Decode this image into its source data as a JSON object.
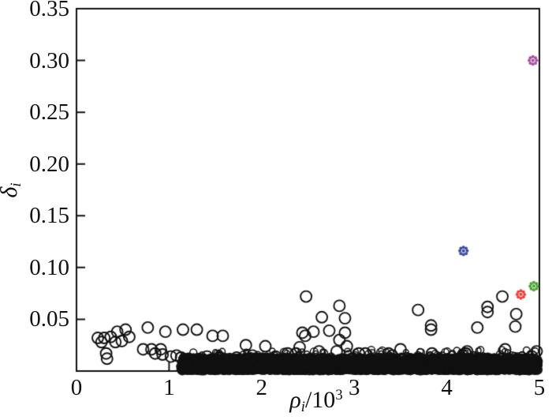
{
  "figure": {
    "background": "#ffffff",
    "axis_color": "#111111",
    "marker_color": "#111111"
  },
  "axis_labels": {
    "y": {
      "symbol": "δ",
      "subscript": "i"
    },
    "x": {
      "symbol": "ρ",
      "subscript": "i",
      "divider": "/10",
      "exponent": "3"
    }
  },
  "chart_data": {
    "type": "scatter",
    "title": "",
    "xlabel": "rho_i / 10^3",
    "ylabel": "delta_i",
    "xlim": [
      0,
      5
    ],
    "ylim": [
      0,
      0.35
    ],
    "grid": false,
    "legend": null,
    "marker": "open-circle",
    "x_tick_values": [
      0,
      1,
      2,
      3,
      4,
      5
    ],
    "x_tick_labels": [
      "0",
      "1",
      "2",
      "3",
      "4",
      "5"
    ],
    "y_tick_values": [
      0.05,
      0.1,
      0.15,
      0.2,
      0.25,
      0.3,
      0.35
    ],
    "y_tick_labels": [
      "0.05",
      "0.10",
      "0.15",
      "0.20",
      "0.25",
      "0.30",
      "0.35"
    ],
    "cluster_center_points": [
      {
        "name": "center-magenta",
        "rho": 4.93,
        "delta": 0.3,
        "color": "#AA50A0"
      },
      {
        "name": "center-blue",
        "rho": 4.18,
        "delta": 0.116,
        "color": "#3C4BA0"
      },
      {
        "name": "center-red",
        "rho": 4.8,
        "delta": 0.074,
        "color": "#E8413C"
      },
      {
        "name": "center-green",
        "rho": 4.94,
        "delta": 0.082,
        "color": "#4CA532"
      }
    ],
    "points": [
      [
        0.23,
        0.032
      ],
      [
        0.27,
        0.028
      ],
      [
        0.3,
        0.032
      ],
      [
        0.37,
        0.033
      ],
      [
        0.44,
        0.038
      ],
      [
        0.53,
        0.04
      ],
      [
        0.57,
        0.033
      ],
      [
        0.49,
        0.029
      ],
      [
        0.42,
        0.028
      ],
      [
        0.32,
        0.017
      ],
      [
        0.33,
        0.012
      ],
      [
        0.77,
        0.042
      ],
      [
        0.96,
        0.038
      ],
      [
        0.72,
        0.021
      ],
      [
        0.81,
        0.021
      ],
      [
        0.85,
        0.017
      ],
      [
        0.91,
        0.021
      ],
      [
        0.93,
        0.016
      ],
      [
        1.02,
        0.014
      ],
      [
        1.08,
        0.015
      ],
      [
        1.15,
        0.04
      ],
      [
        1.3,
        0.04
      ],
      [
        1.47,
        0.034
      ],
      [
        1.58,
        0.034
      ],
      [
        1.83,
        0.025
      ],
      [
        2.04,
        0.024
      ],
      [
        2.48,
        0.072
      ],
      [
        2.84,
        0.063
      ],
      [
        2.65,
        0.052
      ],
      [
        2.9,
        0.051
      ],
      [
        2.44,
        0.037
      ],
      [
        2.56,
        0.038
      ],
      [
        2.73,
        0.039
      ],
      [
        2.9,
        0.037
      ],
      [
        2.84,
        0.03
      ],
      [
        2.41,
        0.023
      ],
      [
        2.37,
        0.017
      ],
      [
        2.47,
        0.034
      ],
      [
        2.92,
        0.024
      ],
      [
        2.81,
        0.019
      ],
      [
        3.12,
        0.017
      ],
      [
        3.37,
        0.017
      ],
      [
        3.69,
        0.059
      ],
      [
        4.6,
        0.072
      ],
      [
        4.44,
        0.062
      ],
      [
        4.44,
        0.057
      ],
      [
        4.75,
        0.055
      ],
      [
        3.83,
        0.044
      ],
      [
        3.83,
        0.04
      ],
      [
        4.33,
        0.042
      ],
      [
        4.74,
        0.043
      ],
      [
        3.5,
        0.021
      ],
      [
        3.41,
        0.015
      ],
      [
        3.84,
        0.017
      ],
      [
        4.2,
        0.017
      ],
      [
        4.22,
        0.019
      ],
      [
        4.63,
        0.021
      ],
      [
        4.92,
        0.014
      ],
      [
        4.97,
        0.019
      ],
      [
        1.13,
        0.013
      ],
      [
        1.18,
        0.011
      ],
      [
        1.23,
        0.009
      ],
      [
        1.41,
        0.014
      ],
      [
        1.73,
        0.013
      ],
      [
        1.9,
        0.015
      ],
      [
        2.15,
        0.014
      ],
      [
        2.28,
        0.017
      ],
      [
        2.62,
        0.019
      ],
      [
        3.05,
        0.017
      ]
    ],
    "dense_band": {
      "rho_min": 1.12,
      "rho_max": 4.99,
      "delta_max": 0.0135,
      "count": 3800,
      "fuzz_count": 140,
      "seed": 1337
    }
  }
}
